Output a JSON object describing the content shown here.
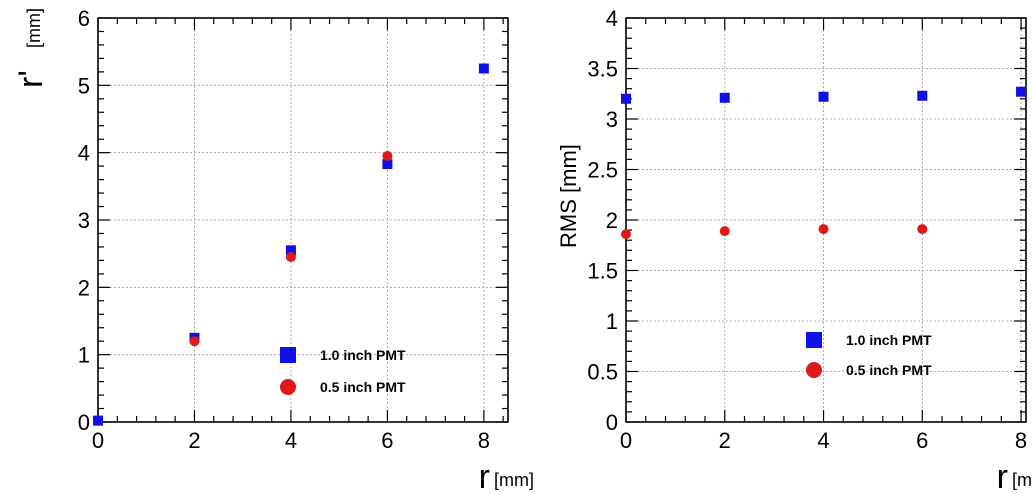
{
  "colors": {
    "blue": "#1010e8",
    "red": "#e01818"
  },
  "chart_data": [
    {
      "type": "scatter",
      "title": "",
      "xlabel": "r",
      "xunit": "[mm]",
      "ylabel": "r'",
      "yunit": "[mm]",
      "xlim": [
        0,
        8.5
      ],
      "ylim": [
        0,
        6
      ],
      "xticks": [
        "0",
        "2",
        "4",
        "6",
        "8"
      ],
      "yticks": [
        "0",
        "1",
        "2",
        "3",
        "4",
        "5",
        "6"
      ],
      "grid": true,
      "legend_position": "bottom-right",
      "series": [
        {
          "name": "1.0 inch  PMT",
          "marker": "square",
          "color": "#1010e8",
          "x": [
            0,
            2,
            4,
            6,
            8
          ],
          "y": [
            0.02,
            1.25,
            2.55,
            3.83,
            5.25
          ]
        },
        {
          "name": "0.5 inch  PMT",
          "marker": "circle",
          "color": "#e01818",
          "x": [
            2,
            4,
            6
          ],
          "y": [
            1.2,
            2.45,
            3.95
          ]
        }
      ]
    },
    {
      "type": "scatter",
      "title": "",
      "xlabel": "r",
      "xunit": "[mm]",
      "ylabel": "RMS [mm]",
      "xlim": [
        0,
        8.1
      ],
      "ylim": [
        0,
        4
      ],
      "xticks": [
        "0",
        "2",
        "4",
        "6",
        "8"
      ],
      "yticks": [
        "0",
        "0.5",
        "1",
        "1.5",
        "2",
        "2.5",
        "3",
        "3.5",
        "4"
      ],
      "grid": true,
      "legend_position": "bottom-right",
      "series": [
        {
          "name": "1.0 inch  PMT",
          "marker": "square",
          "color": "#1010e8",
          "x": [
            0,
            2,
            4,
            6,
            8
          ],
          "y": [
            3.2,
            3.21,
            3.22,
            3.23,
            3.27
          ]
        },
        {
          "name": "0.5 inch  PMT",
          "marker": "circle",
          "color": "#e01818",
          "x": [
            0,
            2,
            4,
            6
          ],
          "y": [
            1.86,
            1.89,
            1.91,
            1.91
          ]
        }
      ]
    }
  ]
}
